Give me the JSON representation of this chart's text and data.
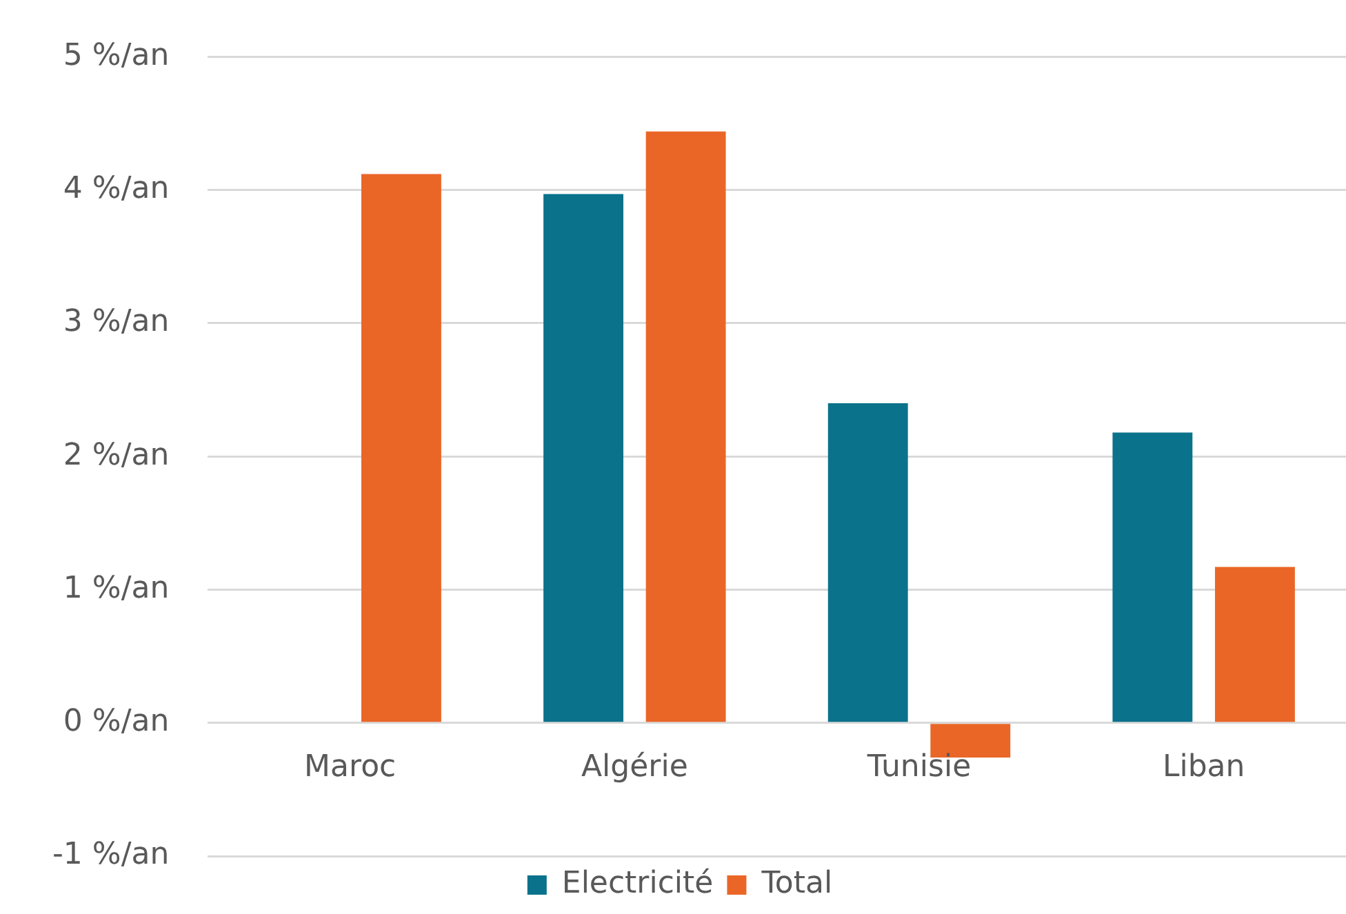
{
  "chart_data": {
    "type": "bar",
    "categories": [
      "Maroc",
      "Algérie",
      "Tunisie",
      "Liban"
    ],
    "series": [
      {
        "name": "Electricité",
        "color": "#0b728c",
        "values": [
          null,
          3.97,
          2.4,
          2.18
        ]
      },
      {
        "name": "Total",
        "color": "#ea6627",
        "values": [
          4.12,
          4.44,
          -0.26,
          1.17
        ]
      }
    ],
    "ylim": [
      -1,
      5
    ],
    "yticks": [
      {
        "value": -1,
        "label": "-1 %/an"
      },
      {
        "value": 0,
        "label": "0 %/an"
      },
      {
        "value": 1,
        "label": "1 %/an"
      },
      {
        "value": 2,
        "label": "2 %/an"
      },
      {
        "value": 3,
        "label": "3 %/an"
      },
      {
        "value": 4,
        "label": "4 %/an"
      },
      {
        "value": 5,
        "label": "5 %/an"
      }
    ],
    "grid": "y",
    "legend": "bottom"
  }
}
